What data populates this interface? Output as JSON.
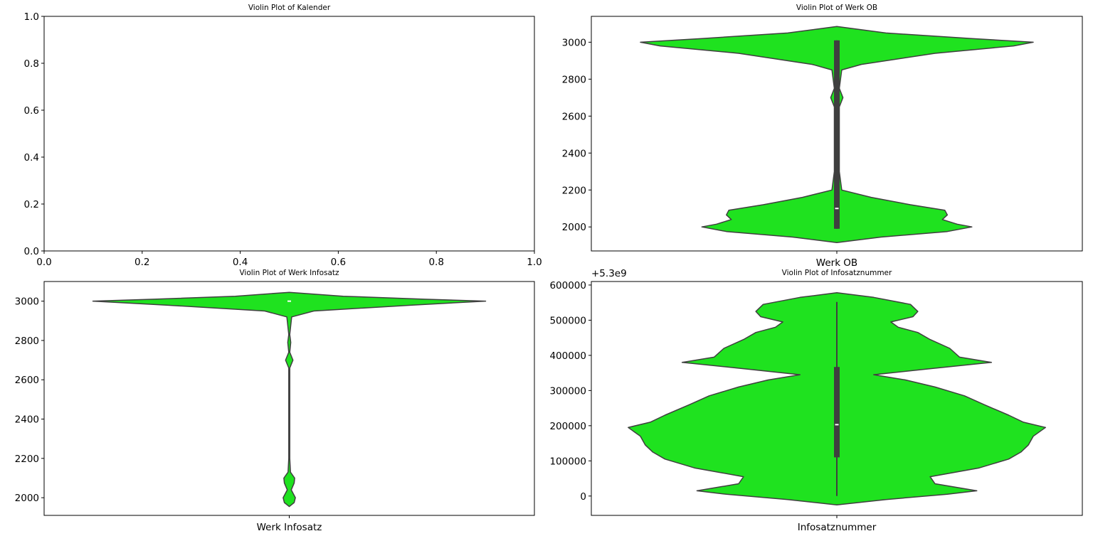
{
  "chart_data": [
    {
      "type": "violin",
      "title": "Violin Plot of Kalender",
      "xlabel": "",
      "ylabel": "",
      "xlim": [
        0.0,
        1.0
      ],
      "ylim": [
        0.0,
        1.0
      ],
      "x_ticks": [
        "0.0",
        "0.2",
        "0.4",
        "0.6",
        "0.8",
        "1.0"
      ],
      "y_ticks": [
        "0.0",
        "0.2",
        "0.4",
        "0.6",
        "0.8",
        "1.0"
      ],
      "empty": true
    },
    {
      "type": "violin",
      "title": "Violin Plot of Werk OB",
      "xlabel": "Werk OB",
      "ylabel": "",
      "ylim": [
        1870,
        3140
      ],
      "y_ticks": [
        "2000",
        "2200",
        "2400",
        "2600",
        "2800",
        "3000"
      ],
      "fill_color": "#1fe21f",
      "edge_color": "#3f3f3f",
      "box": {
        "q1": 1990,
        "median": 2100,
        "q3": 3010,
        "whisker_low": 1990,
        "whisker_high": 3010
      },
      "density": [
        [
          1915,
          0.0
        ],
        [
          1945,
          0.18
        ],
        [
          1975,
          0.45
        ],
        [
          2000,
          0.55
        ],
        [
          2015,
          0.49
        ],
        [
          2040,
          0.43
        ],
        [
          2065,
          0.45
        ],
        [
          2090,
          0.44
        ],
        [
          2120,
          0.3
        ],
        [
          2160,
          0.14
        ],
        [
          2200,
          0.02
        ],
        [
          2300,
          0.01
        ],
        [
          2500,
          0.01
        ],
        [
          2650,
          0.01
        ],
        [
          2700,
          0.025
        ],
        [
          2750,
          0.01
        ],
        [
          2850,
          0.02
        ],
        [
          2880,
          0.1
        ],
        [
          2940,
          0.4
        ],
        [
          2980,
          0.72
        ],
        [
          3000,
          0.8
        ],
        [
          3020,
          0.55
        ],
        [
          3050,
          0.2
        ],
        [
          3085,
          0.0
        ]
      ]
    },
    {
      "type": "violin",
      "title": "Violin Plot of Werk Infosatz",
      "xlabel": "Werk Infosatz",
      "ylabel": "",
      "ylim": [
        1910,
        3100
      ],
      "y_ticks": [
        "2000",
        "2200",
        "2400",
        "2600",
        "2800",
        "3000"
      ],
      "fill_color": "#1fe21f",
      "edge_color": "#3f3f3f",
      "box": {
        "q1": 3000,
        "median": 3000,
        "q3": 3000,
        "whisker_low": 3000,
        "whisker_high": 3000
      },
      "density": [
        [
          1955,
          0.0
        ],
        [
          1975,
          0.02
        ],
        [
          2000,
          0.025
        ],
        [
          2040,
          0.008
        ],
        [
          2075,
          0.02
        ],
        [
          2100,
          0.022
        ],
        [
          2130,
          0.005
        ],
        [
          2200,
          0.002
        ],
        [
          2500,
          0.002
        ],
        [
          2660,
          0.002
        ],
        [
          2700,
          0.015
        ],
        [
          2740,
          0.002
        ],
        [
          2790,
          0.006
        ],
        [
          2830,
          0.002
        ],
        [
          2920,
          0.01
        ],
        [
          2950,
          0.1
        ],
        [
          2980,
          0.5
        ],
        [
          3000,
          0.8
        ],
        [
          3010,
          0.55
        ],
        [
          3025,
          0.22
        ],
        [
          3045,
          0.0
        ]
      ]
    },
    {
      "type": "violin",
      "title": "Violin Plot of Infosatznummer",
      "xlabel": "Infosatznummer",
      "ylabel": "",
      "offset_label": "+5.3e9",
      "ylim": [
        -55000,
        610000
      ],
      "y_ticks": [
        "0",
        "100000",
        "200000",
        "300000",
        "400000",
        "500000",
        "600000"
      ],
      "fill_color": "#1fe21f",
      "edge_color": "#3f3f3f",
      "box": {
        "q1": 110000,
        "median": 203000,
        "q3": 367000,
        "whisker_low": 0,
        "whisker_high": 552000
      },
      "density": [
        [
          -25000,
          0.0
        ],
        [
          -10000,
          0.2
        ],
        [
          5000,
          0.45
        ],
        [
          15000,
          0.57
        ],
        [
          35000,
          0.4
        ],
        [
          55000,
          0.38
        ],
        [
          80000,
          0.58
        ],
        [
          105000,
          0.7
        ],
        [
          125000,
          0.75
        ],
        [
          145000,
          0.78
        ],
        [
          170000,
          0.8
        ],
        [
          195000,
          0.85
        ],
        [
          210000,
          0.76
        ],
        [
          230000,
          0.7
        ],
        [
          260000,
          0.6
        ],
        [
          285000,
          0.52
        ],
        [
          310000,
          0.4
        ],
        [
          330000,
          0.28
        ],
        [
          345000,
          0.15
        ],
        [
          360000,
          0.35
        ],
        [
          380000,
          0.63
        ],
        [
          395000,
          0.5
        ],
        [
          420000,
          0.46
        ],
        [
          445000,
          0.38
        ],
        [
          465000,
          0.33
        ],
        [
          480000,
          0.25
        ],
        [
          495000,
          0.22
        ],
        [
          510000,
          0.31
        ],
        [
          525000,
          0.33
        ],
        [
          545000,
          0.3
        ],
        [
          565000,
          0.15
        ],
        [
          578000,
          0.0
        ]
      ]
    }
  ]
}
